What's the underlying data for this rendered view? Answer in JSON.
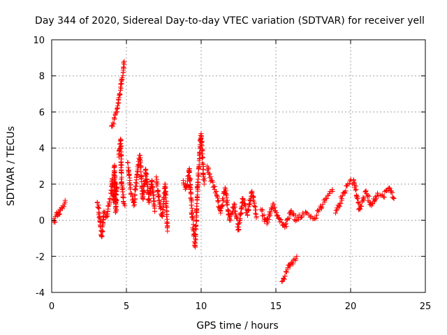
{
  "chart_data": {
    "type": "scatter",
    "title": "Day 344 of 2020, Sidereal Day-to-day VTEC variation (SDTVAR) for receiver yell",
    "xlabel": "GPS time / hours",
    "ylabel": "SDTVAR / TECUs",
    "xlim": [
      0,
      25
    ],
    "ylim": [
      -4,
      10
    ],
    "xticks": [
      0,
      5,
      10,
      15,
      20,
      25
    ],
    "yticks": [
      -4,
      -2,
      0,
      2,
      4,
      6,
      8,
      10
    ],
    "grid": true,
    "marker": "plus",
    "series": [
      {
        "name": "SDTVAR",
        "color": "#ff0000",
        "segments": [
          {
            "x": [
              0.15,
              0.25,
              0.35,
              0.45,
              0.55,
              0.65,
              0.75,
              0.85,
              0.9
            ],
            "y": [
              -0.1,
              0.2,
              0.4,
              0.3,
              0.6,
              0.7,
              0.8,
              0.9,
              1.0
            ]
          },
          {
            "x": [
              3.05,
              3.2,
              3.35,
              3.5,
              3.7,
              3.9
            ],
            "y": [
              1.0,
              0.2,
              -0.9,
              0.5,
              0.2,
              1.2
            ]
          },
          {
            "x": [
              3.95,
              4.05,
              4.15,
              4.2,
              4.3,
              4.35
            ],
            "y": [
              1.5,
              2.3,
              1.0,
              3.0,
              0.5,
              2.0
            ]
          },
          {
            "x": [
              4.0,
              4.1,
              4.2,
              4.3,
              4.4,
              4.5,
              4.6,
              4.7,
              4.8,
              4.85
            ],
            "y": [
              5.2,
              5.4,
              5.6,
              6.0,
              6.2,
              6.8,
              7.2,
              7.8,
              8.3,
              8.8
            ]
          },
          {
            "x": [
              4.5,
              4.6,
              4.7,
              4.8,
              4.9
            ],
            "y": [
              3.5,
              4.5,
              2.0,
              1.0,
              0.8
            ]
          },
          {
            "x": [
              5.1,
              5.3,
              5.5,
              5.7,
              5.9,
              6.1,
              6.3,
              6.5,
              6.7,
              6.9
            ],
            "y": [
              3.2,
              1.5,
              0.8,
              2.5,
              3.6,
              1.2,
              2.8,
              1.0,
              2.2,
              0.5
            ]
          },
          {
            "x": [
              7.0,
              7.2,
              7.4,
              7.6,
              7.75
            ],
            "y": [
              2.4,
              1.0,
              0.2,
              2.0,
              -0.6
            ]
          },
          {
            "x": [
              8.8,
              9.0,
              9.2,
              9.4,
              9.6,
              9.8,
              10.0,
              10.2
            ],
            "y": [
              2.2,
              1.8,
              2.8,
              0.2,
              -1.4,
              2.5,
              4.8,
              2.0
            ]
          },
          {
            "x": [
              10.4,
              10.7,
              11.0,
              11.3,
              11.6,
              11.9,
              12.2,
              12.5,
              12.8,
              13.1,
              13.4,
              13.7
            ],
            "y": [
              3.0,
              2.2,
              1.6,
              0.4,
              1.8,
              0.0,
              0.9,
              -0.5,
              1.2,
              0.3,
              1.6,
              0.2
            ]
          },
          {
            "x": [
              14.0,
              14.4,
              14.8,
              15.2,
              15.6,
              16.0,
              16.4,
              16.8,
              17.2,
              17.6,
              18.0,
              18.4,
              18.8
            ],
            "y": [
              0.6,
              -0.2,
              0.9,
              0.1,
              -0.4,
              0.5,
              0.0,
              0.4,
              0.3,
              0.1,
              0.7,
              1.2,
              1.6
            ]
          },
          {
            "x": [
              15.4,
              15.6,
              15.8,
              16.0,
              16.2,
              16.4
            ],
            "y": [
              -3.4,
              -3.1,
              -2.7,
              -2.4,
              -2.2,
              -2.0
            ]
          },
          {
            "x": [
              19.0,
              19.4,
              19.8,
              20.2,
              20.6,
              21.0,
              21.4,
              21.8,
              22.2,
              22.6,
              22.9
            ],
            "y": [
              0.4,
              1.2,
              2.0,
              2.2,
              0.6,
              1.6,
              0.8,
              1.5,
              1.3,
              1.8,
              1.2
            ]
          }
        ]
      }
    ]
  }
}
